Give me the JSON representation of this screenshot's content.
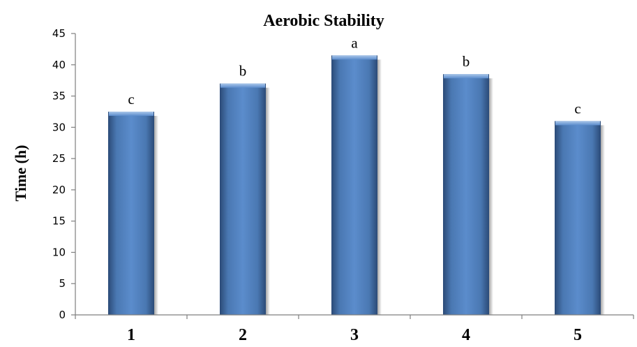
{
  "chart_data": {
    "type": "bar",
    "title": "Aerobic Stability",
    "ylabel": "Time (h)",
    "xlabel": "",
    "categories": [
      "1",
      "2",
      "3",
      "4",
      "5"
    ],
    "values": [
      32.5,
      37,
      41.5,
      38.5,
      31
    ],
    "data_labels": [
      "c",
      "b",
      "a",
      "b",
      "c"
    ],
    "ylim": [
      0,
      45
    ],
    "yticks": [
      "0",
      "5",
      "10",
      "15",
      "20",
      "25",
      "30",
      "35",
      "40",
      "45"
    ],
    "grid": false,
    "legend": "none",
    "colors": {
      "bar": "#4f81bd",
      "bar_dark": "#2b4a77",
      "bar_light": "#8db3e2"
    }
  }
}
